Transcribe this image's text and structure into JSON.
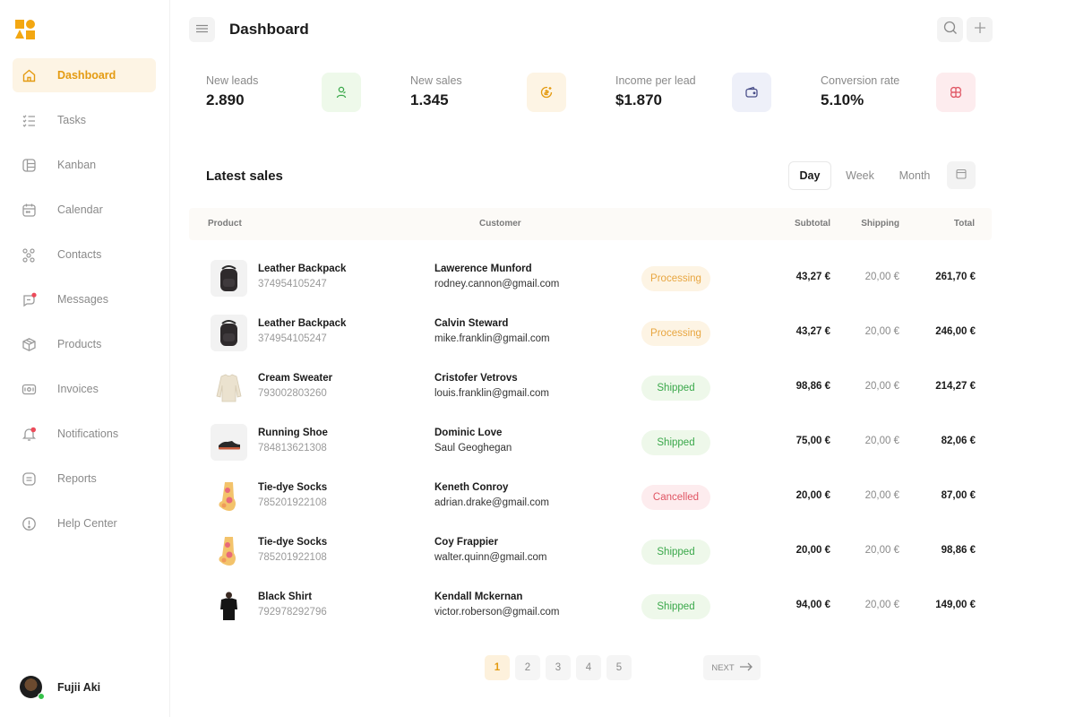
{
  "app": {
    "brand_colors": {
      "accent": "#e49b12",
      "logo": "#f3a712"
    }
  },
  "sidebar": {
    "items": [
      {
        "label": "Dashboard",
        "icon": "home-icon"
      },
      {
        "label": "Tasks",
        "icon": "tasks-icon"
      },
      {
        "label": "Kanban",
        "icon": "kanban-icon"
      },
      {
        "label": "Calendar",
        "icon": "calendar-icon"
      },
      {
        "label": "Contacts",
        "icon": "contacts-icon"
      },
      {
        "label": "Messages",
        "icon": "messages-icon"
      },
      {
        "label": "Products",
        "icon": "box-icon"
      },
      {
        "label": "Invoices",
        "icon": "invoice-icon"
      },
      {
        "label": "Notifications",
        "icon": "bell-icon"
      },
      {
        "label": "Reports",
        "icon": "report-icon"
      },
      {
        "label": "Help Center",
        "icon": "help-icon"
      }
    ],
    "active_item": "Dashboard",
    "user": {
      "name": "Fujii Aki",
      "status": "online"
    }
  },
  "header": {
    "title": "Dashboard"
  },
  "stats": [
    {
      "label": "New leads",
      "value": "2.890",
      "icon": "user-icon",
      "color": "#eef9ea"
    },
    {
      "label": "New sales",
      "value": "1.345",
      "icon": "coin-icon",
      "color": "#fdf4e4"
    },
    {
      "label": "Income per lead",
      "value": "$1.870",
      "icon": "wallet-icon",
      "color": "#eef0f9"
    },
    {
      "label": "Conversion rate",
      "value": "5.10%",
      "icon": "conversion-icon",
      "color": "#fdecee"
    }
  ],
  "sales": {
    "title": "Latest sales",
    "periods": [
      "Day",
      "Week",
      "Month"
    ],
    "active_period": "Day",
    "columns": {
      "product": "Product",
      "customer": "Customer",
      "subtotal": "Subtotal",
      "shipping": "Shipping",
      "total": "Total"
    },
    "rows": [
      {
        "product": "Leather Backpack",
        "product_id": "374954105247",
        "customer": "Lawerence Munford",
        "contact": "rodney.cannon@gmail.com",
        "status": "Processing",
        "subtotal": "43,27 €",
        "shipping": "20,00 €",
        "total": "261,70 €"
      },
      {
        "product": "Leather Backpack",
        "product_id": "374954105247",
        "customer": "Calvin Steward",
        "contact": "mike.franklin@gmail.com",
        "status": "Processing",
        "subtotal": "43,27 €",
        "shipping": "20,00 €",
        "total": "246,00 €"
      },
      {
        "product": "Cream Sweater",
        "product_id": "793002803260",
        "customer": "Cristofer Vetrovs",
        "contact": "louis.franklin@gmail.com",
        "status": "Shipped",
        "subtotal": "98,86 €",
        "shipping": "20,00 €",
        "total": "214,27 €"
      },
      {
        "product": "Running Shoe",
        "product_id": "784813621308",
        "customer": "Dominic Love",
        "contact": "Saul Geoghegan",
        "status": "Shipped",
        "subtotal": "75,00 €",
        "shipping": "20,00 €",
        "total": "82,06 €"
      },
      {
        "product": "Tie-dye Socks",
        "product_id": "785201922108",
        "customer": "Keneth Conroy",
        "contact": "adrian.drake@gmail.com",
        "status": "Cancelled",
        "subtotal": "20,00 €",
        "shipping": "20,00 €",
        "total": "87,00 €"
      },
      {
        "product": "Tie-dye Socks",
        "product_id": "785201922108",
        "customer": "Coy Frappier",
        "contact": "walter.quinn@gmail.com",
        "status": "Shipped",
        "subtotal": "20,00 €",
        "shipping": "20,00 €",
        "total": "98,86 €"
      },
      {
        "product": "Black Shirt",
        "product_id": "792978292796",
        "customer": "Kendall Mckernan",
        "contact": "victor.roberson@gmail.com",
        "status": "Shipped",
        "subtotal": "94,00 €",
        "shipping": "20,00 €",
        "total": "149,00 €"
      }
    ]
  },
  "pagination": {
    "pages": [
      "1",
      "2",
      "3",
      "4",
      "5"
    ],
    "current": "1",
    "next_label": "NEXT"
  }
}
